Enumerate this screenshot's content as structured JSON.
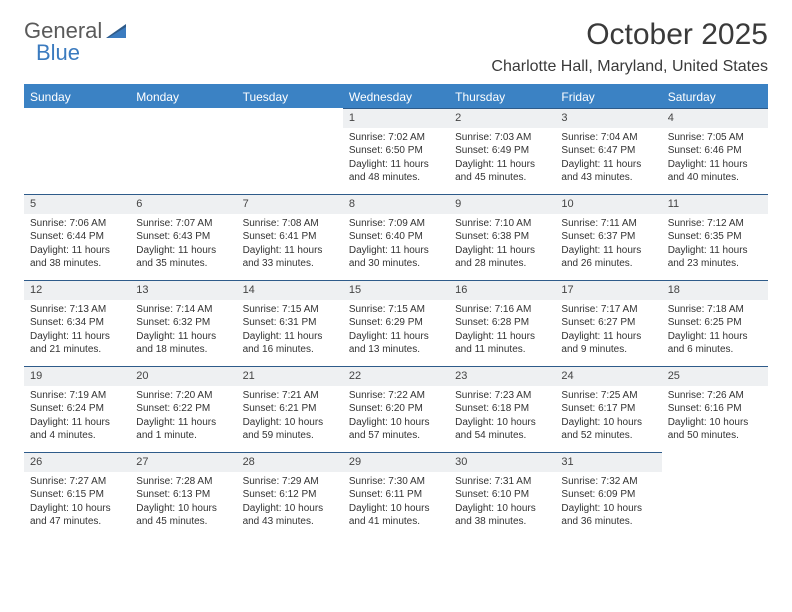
{
  "brand": {
    "part1": "General",
    "part2": "Blue"
  },
  "title": "October 2025",
  "location": "Charlotte Hall, Maryland, United States",
  "colors": {
    "header_bg": "#3b82c4",
    "header_text": "#ffffff",
    "daynum_bg": "#eef0f2",
    "row_border": "#2e5b8a",
    "brand_gray": "#5a5a5a",
    "brand_blue": "#3b7bbf"
  },
  "weekdays": [
    "Sunday",
    "Monday",
    "Tuesday",
    "Wednesday",
    "Thursday",
    "Friday",
    "Saturday"
  ],
  "weeks": [
    [
      {
        "n": "",
        "sr": "",
        "ss": "",
        "dl": ""
      },
      {
        "n": "",
        "sr": "",
        "ss": "",
        "dl": ""
      },
      {
        "n": "",
        "sr": "",
        "ss": "",
        "dl": ""
      },
      {
        "n": "1",
        "sr": "Sunrise: 7:02 AM",
        "ss": "Sunset: 6:50 PM",
        "dl": "Daylight: 11 hours and 48 minutes."
      },
      {
        "n": "2",
        "sr": "Sunrise: 7:03 AM",
        "ss": "Sunset: 6:49 PM",
        "dl": "Daylight: 11 hours and 45 minutes."
      },
      {
        "n": "3",
        "sr": "Sunrise: 7:04 AM",
        "ss": "Sunset: 6:47 PM",
        "dl": "Daylight: 11 hours and 43 minutes."
      },
      {
        "n": "4",
        "sr": "Sunrise: 7:05 AM",
        "ss": "Sunset: 6:46 PM",
        "dl": "Daylight: 11 hours and 40 minutes."
      }
    ],
    [
      {
        "n": "5",
        "sr": "Sunrise: 7:06 AM",
        "ss": "Sunset: 6:44 PM",
        "dl": "Daylight: 11 hours and 38 minutes."
      },
      {
        "n": "6",
        "sr": "Sunrise: 7:07 AM",
        "ss": "Sunset: 6:43 PM",
        "dl": "Daylight: 11 hours and 35 minutes."
      },
      {
        "n": "7",
        "sr": "Sunrise: 7:08 AM",
        "ss": "Sunset: 6:41 PM",
        "dl": "Daylight: 11 hours and 33 minutes."
      },
      {
        "n": "8",
        "sr": "Sunrise: 7:09 AM",
        "ss": "Sunset: 6:40 PM",
        "dl": "Daylight: 11 hours and 30 minutes."
      },
      {
        "n": "9",
        "sr": "Sunrise: 7:10 AM",
        "ss": "Sunset: 6:38 PM",
        "dl": "Daylight: 11 hours and 28 minutes."
      },
      {
        "n": "10",
        "sr": "Sunrise: 7:11 AM",
        "ss": "Sunset: 6:37 PM",
        "dl": "Daylight: 11 hours and 26 minutes."
      },
      {
        "n": "11",
        "sr": "Sunrise: 7:12 AM",
        "ss": "Sunset: 6:35 PM",
        "dl": "Daylight: 11 hours and 23 minutes."
      }
    ],
    [
      {
        "n": "12",
        "sr": "Sunrise: 7:13 AM",
        "ss": "Sunset: 6:34 PM",
        "dl": "Daylight: 11 hours and 21 minutes."
      },
      {
        "n": "13",
        "sr": "Sunrise: 7:14 AM",
        "ss": "Sunset: 6:32 PM",
        "dl": "Daylight: 11 hours and 18 minutes."
      },
      {
        "n": "14",
        "sr": "Sunrise: 7:15 AM",
        "ss": "Sunset: 6:31 PM",
        "dl": "Daylight: 11 hours and 16 minutes."
      },
      {
        "n": "15",
        "sr": "Sunrise: 7:15 AM",
        "ss": "Sunset: 6:29 PM",
        "dl": "Daylight: 11 hours and 13 minutes."
      },
      {
        "n": "16",
        "sr": "Sunrise: 7:16 AM",
        "ss": "Sunset: 6:28 PM",
        "dl": "Daylight: 11 hours and 11 minutes."
      },
      {
        "n": "17",
        "sr": "Sunrise: 7:17 AM",
        "ss": "Sunset: 6:27 PM",
        "dl": "Daylight: 11 hours and 9 minutes."
      },
      {
        "n": "18",
        "sr": "Sunrise: 7:18 AM",
        "ss": "Sunset: 6:25 PM",
        "dl": "Daylight: 11 hours and 6 minutes."
      }
    ],
    [
      {
        "n": "19",
        "sr": "Sunrise: 7:19 AM",
        "ss": "Sunset: 6:24 PM",
        "dl": "Daylight: 11 hours and 4 minutes."
      },
      {
        "n": "20",
        "sr": "Sunrise: 7:20 AM",
        "ss": "Sunset: 6:22 PM",
        "dl": "Daylight: 11 hours and 1 minute."
      },
      {
        "n": "21",
        "sr": "Sunrise: 7:21 AM",
        "ss": "Sunset: 6:21 PM",
        "dl": "Daylight: 10 hours and 59 minutes."
      },
      {
        "n": "22",
        "sr": "Sunrise: 7:22 AM",
        "ss": "Sunset: 6:20 PM",
        "dl": "Daylight: 10 hours and 57 minutes."
      },
      {
        "n": "23",
        "sr": "Sunrise: 7:23 AM",
        "ss": "Sunset: 6:18 PM",
        "dl": "Daylight: 10 hours and 54 minutes."
      },
      {
        "n": "24",
        "sr": "Sunrise: 7:25 AM",
        "ss": "Sunset: 6:17 PM",
        "dl": "Daylight: 10 hours and 52 minutes."
      },
      {
        "n": "25",
        "sr": "Sunrise: 7:26 AM",
        "ss": "Sunset: 6:16 PM",
        "dl": "Daylight: 10 hours and 50 minutes."
      }
    ],
    [
      {
        "n": "26",
        "sr": "Sunrise: 7:27 AM",
        "ss": "Sunset: 6:15 PM",
        "dl": "Daylight: 10 hours and 47 minutes."
      },
      {
        "n": "27",
        "sr": "Sunrise: 7:28 AM",
        "ss": "Sunset: 6:13 PM",
        "dl": "Daylight: 10 hours and 45 minutes."
      },
      {
        "n": "28",
        "sr": "Sunrise: 7:29 AM",
        "ss": "Sunset: 6:12 PM",
        "dl": "Daylight: 10 hours and 43 minutes."
      },
      {
        "n": "29",
        "sr": "Sunrise: 7:30 AM",
        "ss": "Sunset: 6:11 PM",
        "dl": "Daylight: 10 hours and 41 minutes."
      },
      {
        "n": "30",
        "sr": "Sunrise: 7:31 AM",
        "ss": "Sunset: 6:10 PM",
        "dl": "Daylight: 10 hours and 38 minutes."
      },
      {
        "n": "31",
        "sr": "Sunrise: 7:32 AM",
        "ss": "Sunset: 6:09 PM",
        "dl": "Daylight: 10 hours and 36 minutes."
      },
      {
        "n": "",
        "sr": "",
        "ss": "",
        "dl": ""
      }
    ]
  ]
}
